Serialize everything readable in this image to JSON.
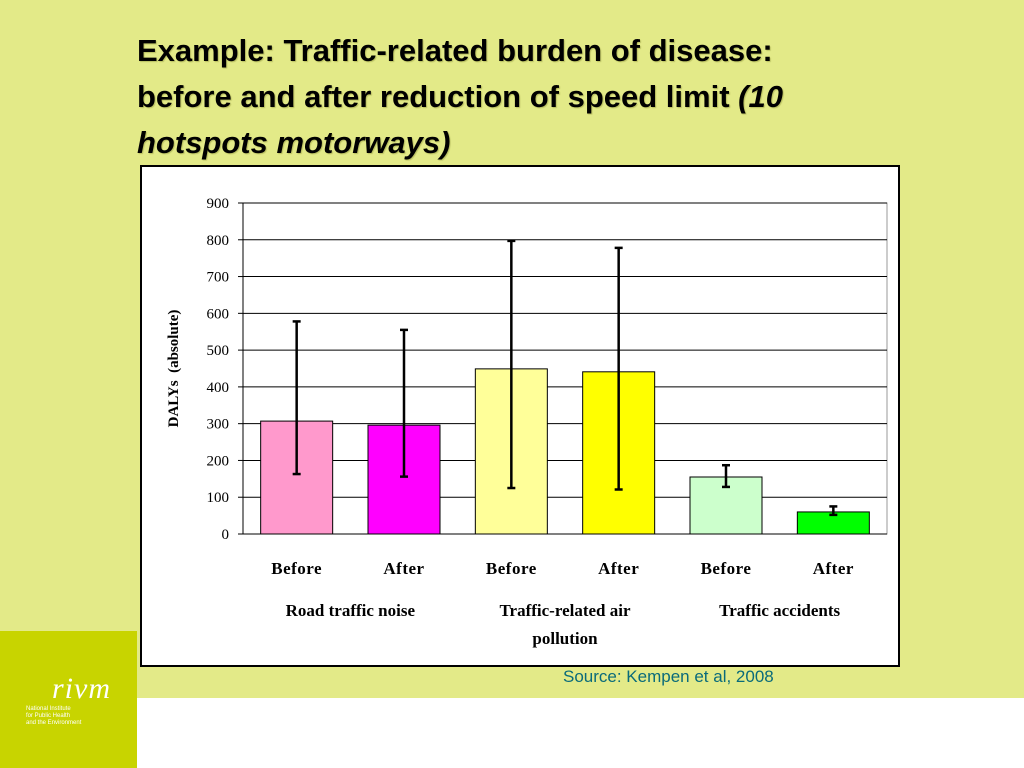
{
  "slide": {
    "title_line1": "Example: Traffic-related burden of disease:",
    "title_line2": "before and after reduction of speed limit ",
    "title_italic_1": "(10",
    "title_italic_2": "hotspots motorways)",
    "source": "Source: Kempen et al, 2008"
  },
  "logo": {
    "name": "rivm",
    "sub": [
      "National Institute",
      "for Public Health",
      "and the Environment"
    ]
  },
  "chart_data": {
    "type": "bar",
    "ylabel": "DALYs  (absolute)",
    "ylim": [
      0,
      900
    ],
    "yticks": [
      0,
      100,
      200,
      300,
      400,
      500,
      600,
      700,
      800,
      900
    ],
    "grid": true,
    "groups": [
      "Road traffic noise",
      "Traffic-related air pollution",
      "Traffic accidents"
    ],
    "categories": [
      "Before",
      "After",
      "Before",
      "After",
      "Before",
      "After"
    ],
    "values": [
      307,
      296,
      449,
      441,
      155,
      60
    ],
    "error_low": [
      163,
      156,
      125,
      121,
      128,
      52
    ],
    "error_high": [
      578,
      555,
      797,
      778,
      187,
      75
    ],
    "colors": [
      "#ff99cc",
      "#ff00ff",
      "#ffff99",
      "#ffff00",
      "#ccffcc",
      "#00ff00"
    ]
  }
}
